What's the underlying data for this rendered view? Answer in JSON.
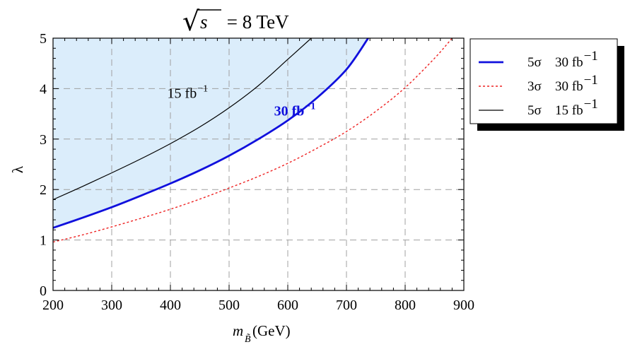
{
  "chart_data": {
    "type": "area",
    "title_prefix": "√",
    "title_var": "s",
    "title_rest": " = 8 TeV",
    "xlabel_main": "m",
    "xlabel_sub": "B̃",
    "xlabel_unit": "(GeV)",
    "ylabel": "λ",
    "xlim": [
      200,
      900
    ],
    "ylim": [
      0,
      5
    ],
    "x_ticks": [
      "200",
      "300",
      "400",
      "500",
      "600",
      "700",
      "800",
      "900"
    ],
    "y_ticks": [
      "0",
      "1",
      "2",
      "3",
      "4",
      "5"
    ],
    "grid": true,
    "legend_position": "right",
    "shaded_region": "between 5σ 15 fb⁻¹ and 5σ 30 fb⁻¹ curves and above 15 fb⁻¹ curve",
    "series": [
      {
        "name": "5σ  30 fb⁻¹",
        "legend_sigma": "5σ",
        "legend_lumi": "30 fb",
        "legend_exp": "−1",
        "color": "#1010dd",
        "style": "solid-thick",
        "x": [
          200,
          250,
          300,
          350,
          400,
          450,
          500,
          550,
          600,
          650,
          700,
          737
        ],
        "y": [
          1.24,
          1.44,
          1.65,
          1.88,
          2.12,
          2.38,
          2.67,
          3.0,
          3.37,
          3.82,
          4.38,
          5.0
        ]
      },
      {
        "name": "3σ  30 fb⁻¹",
        "legend_sigma": "3σ",
        "legend_lumi": "30 fb",
        "legend_exp": "−1",
        "color": "#ee2222",
        "style": "dotted",
        "x": [
          200,
          250,
          300,
          350,
          400,
          450,
          500,
          550,
          600,
          650,
          700,
          750,
          800,
          850,
          880
        ],
        "y": [
          0.96,
          1.1,
          1.26,
          1.43,
          1.61,
          1.81,
          2.03,
          2.26,
          2.52,
          2.82,
          3.15,
          3.55,
          4.02,
          4.6,
          5.0
        ]
      },
      {
        "name": "5σ  15 fb⁻¹",
        "legend_sigma": "5σ",
        "legend_lumi": "15 fb",
        "legend_exp": "−1",
        "color": "#000000",
        "style": "solid-thin",
        "x": [
          200,
          250,
          300,
          350,
          400,
          450,
          500,
          550,
          600,
          640
        ],
        "y": [
          1.8,
          2.06,
          2.33,
          2.61,
          2.91,
          3.24,
          3.62,
          4.06,
          4.58,
          5.0
        ]
      }
    ],
    "annotations": [
      {
        "text": "15 fb",
        "exp": "−1",
        "x": 438,
        "y": 3.9,
        "color": "#000000",
        "bold": false
      },
      {
        "text": "30 fb",
        "exp": "−1",
        "x": 620,
        "y": 3.55,
        "color": "#1010dd",
        "bold": true
      }
    ]
  }
}
